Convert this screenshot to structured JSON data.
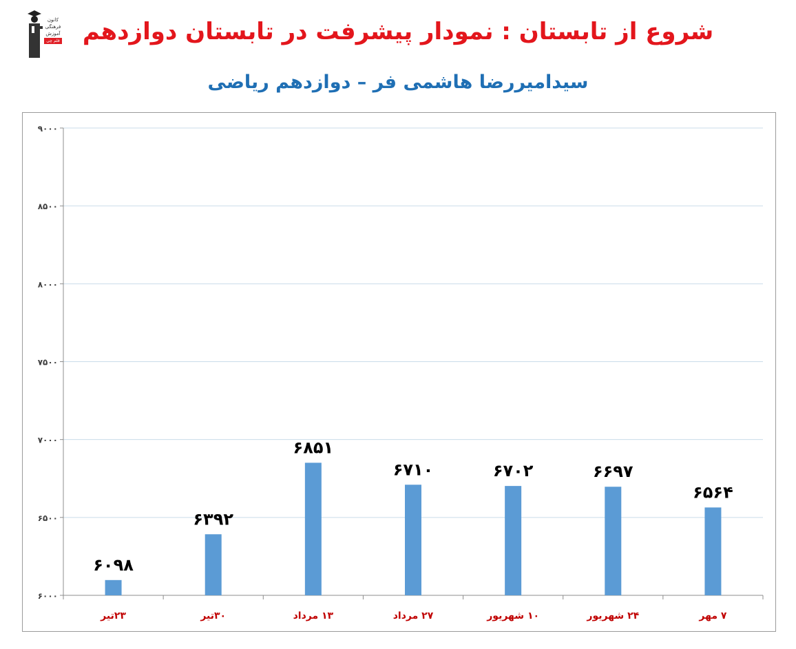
{
  "header": {
    "title": "شروع از تابستان : نمودار پیشرفت در تابستان دوازدهم",
    "subtitle": "سیدامیررضا هاشمی فر – دوازدهم ریاضی"
  },
  "logo": {
    "line1": "کانون",
    "line2": "فرهنگی",
    "line3": "آموزش",
    "badge": "قلم چی"
  },
  "colors": {
    "title": "#e3161c",
    "subtitle": "#1f6fb4",
    "bar": "#5b9bd5",
    "category": "#c00000",
    "grid": "#c9dbe9"
  },
  "chart_data": {
    "type": "bar",
    "title": "",
    "xlabel": "",
    "ylabel": "",
    "categories": [
      "۲۳تیر",
      "۳۰تیر",
      "۱۳ مرداد",
      "۲۷ مرداد",
      "۱۰ شهریور",
      "۲۴ شهریور",
      "۷ مهر"
    ],
    "values": [
      6098,
      6392,
      6851,
      6710,
      6702,
      6697,
      6564
    ],
    "value_labels": [
      "۶۰۹۸",
      "۶۳۹۲",
      "۶۸۵۱",
      "۶۷۱۰",
      "۶۷۰۲",
      "۶۶۹۷",
      "۶۵۶۴"
    ],
    "ylim": [
      6000,
      9000
    ],
    "yticks": [
      6000,
      6500,
      7000,
      7500,
      8000,
      8500,
      9000
    ],
    "ytick_labels": [
      "۶۰۰۰",
      "۶۵۰۰",
      "۷۰۰۰",
      "۷۵۰۰",
      "۸۰۰۰",
      "۸۵۰۰",
      "۹۰۰۰"
    ],
    "grid": true,
    "legend": "none"
  }
}
